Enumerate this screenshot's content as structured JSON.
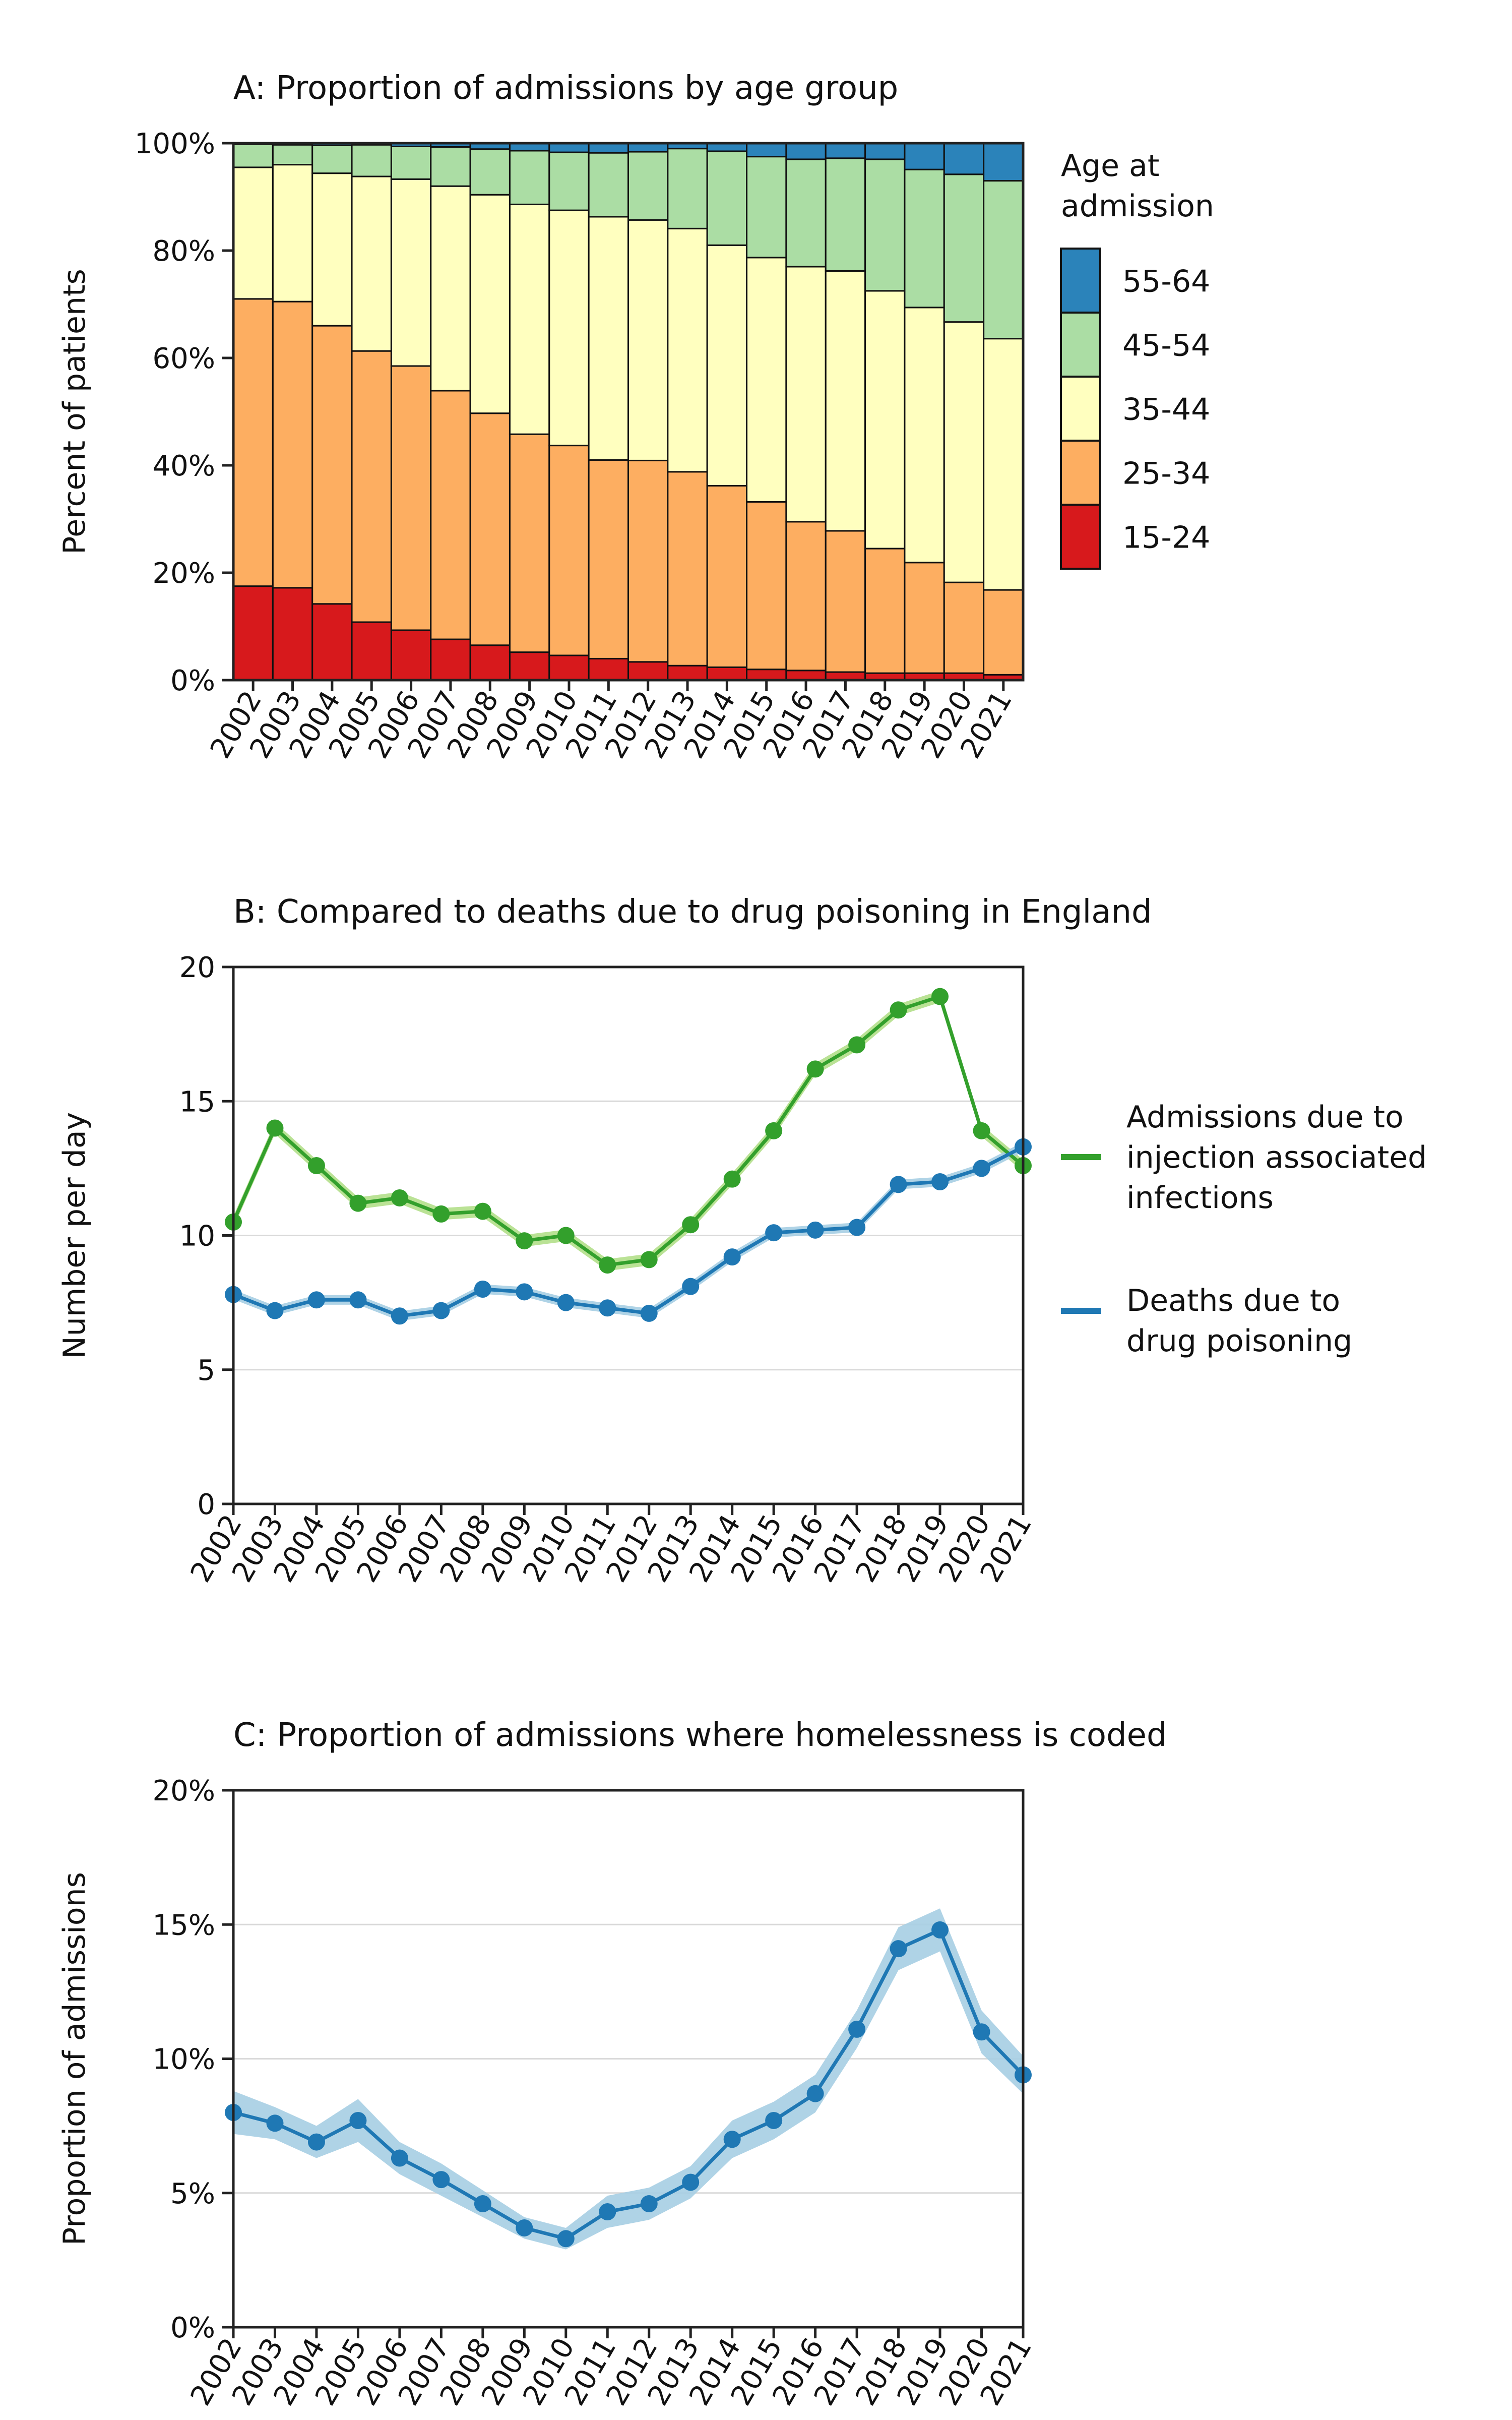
{
  "chart_data": [
    {
      "type": "bar",
      "stacked": true,
      "title": "A: Proportion of admissions by age group",
      "xlabel": "",
      "ylabel": "Percent of patients",
      "ylim": [
        0,
        100
      ],
      "yticks": [
        "0%",
        "20%",
        "40%",
        "60%",
        "80%",
        "100%"
      ],
      "grid": false,
      "legend_title": "Age at admission",
      "legend_title_lines": [
        "Age at",
        "admission"
      ],
      "legend_position": "right",
      "categories": [
        "2002",
        "2003",
        "2004",
        "2005",
        "2006",
        "2007",
        "2008",
        "2009",
        "2010",
        "2011",
        "2012",
        "2013",
        "2014",
        "2015",
        "2016",
        "2017",
        "2018",
        "2019",
        "2020",
        "2021"
      ],
      "series": [
        {
          "name": "15-24",
          "color": "#d7191c",
          "values": [
            17.5,
            17.2,
            14.2,
            10.8,
            9.3,
            7.6,
            6.5,
            5.2,
            4.6,
            4.0,
            3.4,
            2.7,
            2.4,
            2.0,
            1.8,
            1.5,
            1.3,
            1.3,
            1.3,
            1.0
          ]
        },
        {
          "name": "25-34",
          "color": "#fdae61",
          "values": [
            53.5,
            53.3,
            51.8,
            50.5,
            49.2,
            46.3,
            43.2,
            40.6,
            39.1,
            37.0,
            37.5,
            36.1,
            33.8,
            31.2,
            27.7,
            26.3,
            23.2,
            20.6,
            16.9,
            15.8
          ]
        },
        {
          "name": "35-44",
          "color": "#ffffbf",
          "values": [
            24.5,
            25.5,
            28.4,
            32.5,
            34.8,
            38.1,
            40.7,
            42.8,
            43.8,
            45.3,
            44.8,
            45.3,
            44.8,
            45.5,
            47.5,
            48.4,
            48.0,
            47.5,
            48.5,
            46.8
          ]
        },
        {
          "name": "45-54",
          "color": "#abdda4",
          "values": [
            4.3,
            3.7,
            5.2,
            5.9,
            6.1,
            7.3,
            8.5,
            10.0,
            10.8,
            11.9,
            12.7,
            14.9,
            17.5,
            18.8,
            20.0,
            21.0,
            24.5,
            25.7,
            27.5,
            29.4
          ]
        },
        {
          "name": "55-64",
          "color": "#2b83ba",
          "values": [
            0.2,
            0.3,
            0.4,
            0.3,
            0.6,
            0.7,
            1.1,
            1.4,
            1.7,
            1.8,
            1.6,
            1.0,
            1.5,
            2.5,
            3.0,
            2.8,
            3.0,
            4.9,
            5.8,
            7.0
          ]
        }
      ]
    },
    {
      "type": "line",
      "title": "B: Compared to deaths due to drug poisoning in England",
      "xlabel": "",
      "ylabel": "Number per day",
      "ylim": [
        0,
        20
      ],
      "yticks": [
        "0",
        "5",
        "10",
        "15",
        "20"
      ],
      "grid": true,
      "legend_position": "right",
      "x": [
        "2002",
        "2003",
        "2004",
        "2005",
        "2006",
        "2007",
        "2008",
        "2009",
        "2010",
        "2011",
        "2012",
        "2013",
        "2014",
        "2015",
        "2016",
        "2017",
        "2018",
        "2019",
        "2020",
        "2021"
      ],
      "series": [
        {
          "name": "Admissions due to injection associated infections",
          "name_lines": [
            "Admissions due to",
            "injection associated",
            "infections"
          ],
          "color": "#33a02c",
          "band_color": "#b2df8a",
          "band_halfwidth": 0.22,
          "values": [
            10.5,
            14.0,
            12.6,
            11.2,
            11.4,
            10.8,
            10.9,
            9.8,
            10.0,
            8.9,
            9.1,
            10.4,
            12.1,
            13.9,
            16.2,
            17.1,
            18.4,
            18.9,
            13.9,
            12.6
          ]
        },
        {
          "name": "Deaths due to drug poisoning",
          "name_lines": [
            "Deaths due to",
            "drug poisoning"
          ],
          "color": "#1f78b4",
          "band_color": "#a6cee3",
          "band_halfwidth": 0.18,
          "values": [
            7.8,
            7.2,
            7.6,
            7.6,
            7.0,
            7.2,
            8.0,
            7.9,
            7.5,
            7.3,
            7.1,
            8.1,
            9.2,
            10.1,
            10.2,
            10.3,
            11.9,
            12.0,
            12.5,
            13.3
          ]
        }
      ]
    },
    {
      "type": "line",
      "title": "C: Proportion of admissions where homelessness is coded",
      "xlabel": "",
      "ylabel": "Proportion of admissions",
      "ylim": [
        0,
        20
      ],
      "yticks": [
        "0%",
        "5%",
        "10%",
        "15%",
        "20%"
      ],
      "grid": true,
      "x": [
        "2002",
        "2003",
        "2004",
        "2005",
        "2006",
        "2007",
        "2008",
        "2009",
        "2010",
        "2011",
        "2012",
        "2013",
        "2014",
        "2015",
        "2016",
        "2017",
        "2018",
        "2019",
        "2020",
        "2021"
      ],
      "series": [
        {
          "color": "#1f78b4",
          "band_color": "#a6cee3",
          "values": [
            8.0,
            7.6,
            6.9,
            7.7,
            6.3,
            5.5,
            4.6,
            3.7,
            3.3,
            4.3,
            4.6,
            5.4,
            7.0,
            7.7,
            8.7,
            11.1,
            14.1,
            14.8,
            11.0,
            9.4
          ],
          "band_halfwidth": [
            0.8,
            0.6,
            0.6,
            0.8,
            0.6,
            0.6,
            0.5,
            0.4,
            0.4,
            0.6,
            0.6,
            0.6,
            0.7,
            0.7,
            0.7,
            0.7,
            0.8,
            0.8,
            0.8,
            0.7
          ]
        }
      ]
    }
  ]
}
